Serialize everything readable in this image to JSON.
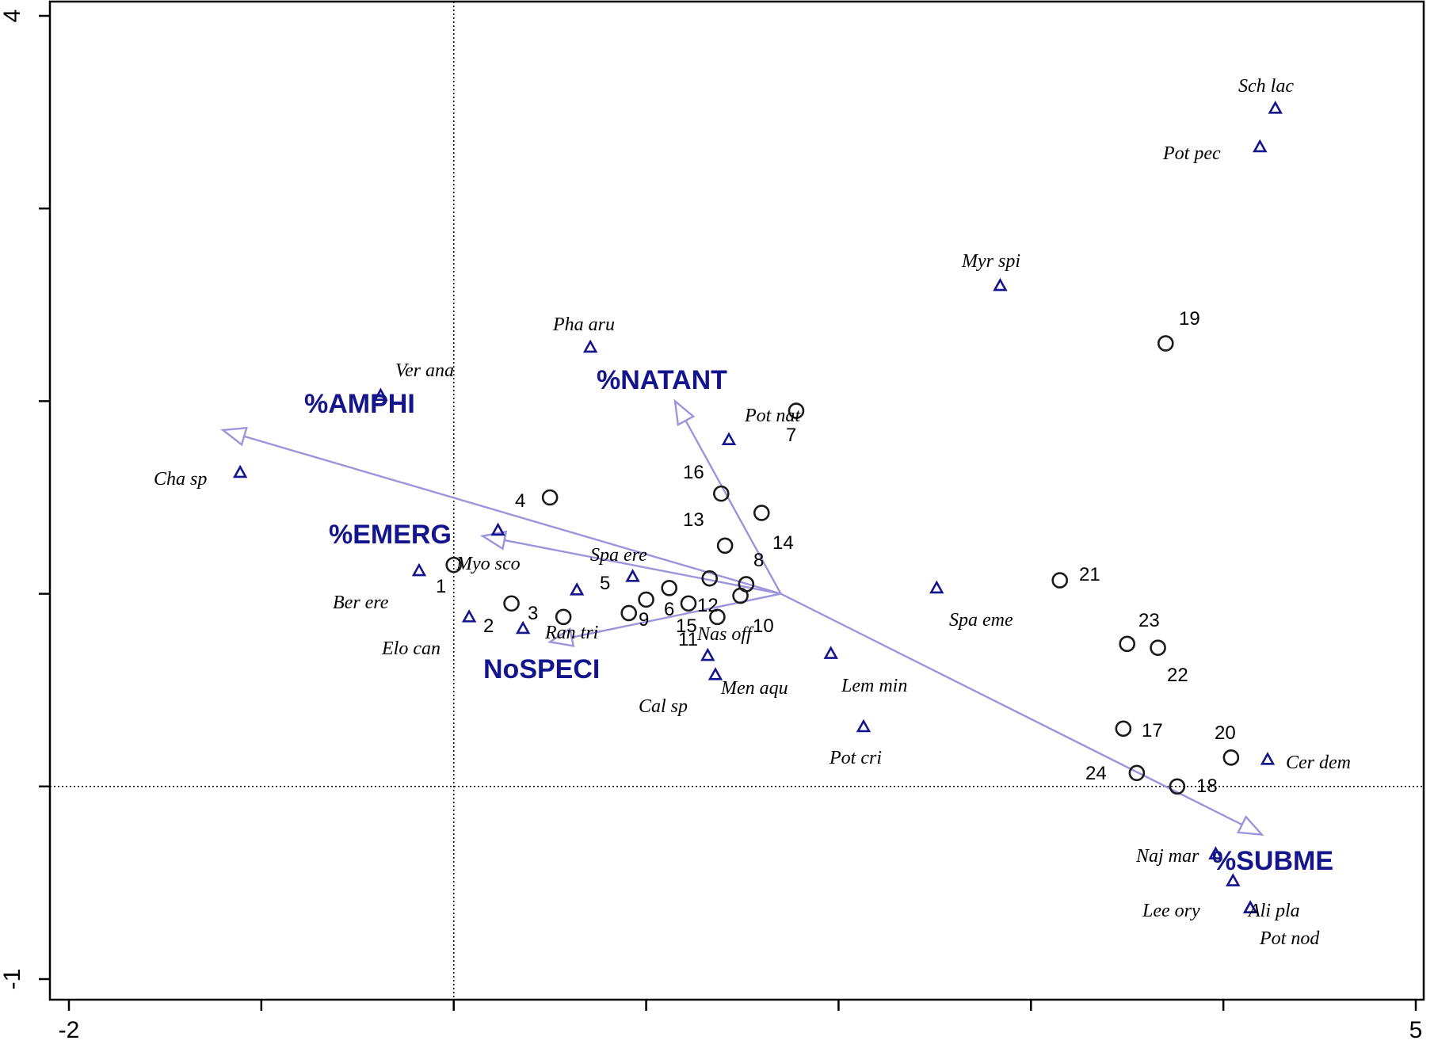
{
  "chart_data": {
    "type": "scatter",
    "title": "",
    "xlabel": "",
    "ylabel": "",
    "xlim": [
      -2,
      5
    ],
    "ylim": [
      -1,
      4
    ],
    "x_ticks": [
      -2,
      -1,
      0,
      1,
      2,
      3,
      4,
      5
    ],
    "y_ticks": [
      -1,
      0,
      1,
      2,
      3,
      4
    ],
    "x_tick_labels": [
      {
        "value": -2,
        "label": "-2"
      },
      {
        "value": 5,
        "label": "5"
      }
    ],
    "y_tick_labels": [
      {
        "value": -1,
        "label": "-1"
      },
      {
        "value": 4,
        "label": "4"
      }
    ],
    "reference_lines": {
      "x": 0,
      "y": 0
    },
    "colors": {
      "env": "#9b95db",
      "species": "#14148c",
      "label": "#14148c"
    },
    "env_vectors": [
      {
        "name": "%AMPHI",
        "x": -1.2,
        "y": 1.85
      },
      {
        "name": "%NATANT",
        "x": 1.15,
        "y": 2.0
      },
      {
        "name": "%EMERG",
        "x": 0.15,
        "y": 1.3
      },
      {
        "name": "NoSPECI",
        "x": 0.5,
        "y": 0.75
      },
      {
        "name": "%SUBME",
        "x": 4.2,
        "y": -0.25
      }
    ],
    "env_origin": {
      "x": 1.7,
      "y": 1.0
    },
    "sites": [
      {
        "label": "1",
        "x": 0.0,
        "y": 1.15
      },
      {
        "label": "2",
        "x": 0.3,
        "y": 0.95
      },
      {
        "label": "3",
        "x": 0.57,
        "y": 0.88
      },
      {
        "label": "4",
        "x": 0.5,
        "y": 1.5
      },
      {
        "label": "5",
        "x": 0.91,
        "y": 0.9
      },
      {
        "label": "6",
        "x": 1.0,
        "y": 0.97
      },
      {
        "label": "7",
        "x": 1.78,
        "y": 1.95
      },
      {
        "label": "8",
        "x": 1.41,
        "y": 1.25
      },
      {
        "label": "9",
        "x": 1.12,
        "y": 1.03
      },
      {
        "label": "10",
        "x": 1.49,
        "y": 0.99
      },
      {
        "label": "11",
        "x": 1.22,
        "y": 0.95
      },
      {
        "label": "12",
        "x": 1.33,
        "y": 1.08
      },
      {
        "label": "13",
        "x": 1.39,
        "y": 1.52
      },
      {
        "label": "14",
        "x": 1.6,
        "y": 1.42
      },
      {
        "label": "15",
        "x": 1.37,
        "y": 0.88
      },
      {
        "label": "16",
        "x": 1.52,
        "y": 1.05
      },
      {
        "label": "17",
        "x": 3.48,
        "y": 0.3
      },
      {
        "label": "18",
        "x": 3.76,
        "y": 0.0
      },
      {
        "label": "19",
        "x": 3.7,
        "y": 2.3
      },
      {
        "label": "20",
        "x": 4.04,
        "y": 0.15
      },
      {
        "label": "21",
        "x": 3.15,
        "y": 1.07
      },
      {
        "label": "22",
        "x": 3.66,
        "y": 0.72
      },
      {
        "label": "23",
        "x": 3.5,
        "y": 0.74
      },
      {
        "label": "24",
        "x": 3.55,
        "y": 0.07
      }
    ],
    "species": [
      {
        "label": "Sch lac",
        "x": 4.27,
        "y": 3.52
      },
      {
        "label": "Pot pec",
        "x": 4.19,
        "y": 3.32
      },
      {
        "label": "Myr spi",
        "x": 2.84,
        "y": 2.6
      },
      {
        "label": "Pha aru",
        "x": 0.71,
        "y": 2.28
      },
      {
        "label": "Ver ana",
        "x": -0.38,
        "y": 2.03
      },
      {
        "label": "Pot nat",
        "x": 1.43,
        "y": 1.8
      },
      {
        "label": "Cha sp",
        "x": -1.11,
        "y": 1.63
      },
      {
        "label": "Myo sco",
        "x": 0.23,
        "y": 1.33
      },
      {
        "label": "Spa ere",
        "x": 0.93,
        "y": 1.09
      },
      {
        "label": "Ber ere",
        "x": -0.18,
        "y": 1.12
      },
      {
        "label": "Ran tri",
        "x": 0.64,
        "y": 1.02
      },
      {
        "label": "Elo can",
        "x": 0.08,
        "y": 0.88
      },
      {
        "label": "Nas off",
        "x": 0.36,
        "y": 0.82
      },
      {
        "label": "Cal sp",
        "x": 1.32,
        "y": 0.68
      },
      {
        "label": "Men aqu",
        "x": 1.36,
        "y": 0.58
      },
      {
        "label": "Spa eme",
        "x": 2.51,
        "y": 1.03
      },
      {
        "label": "Lem min",
        "x": 1.96,
        "y": 0.69
      },
      {
        "label": "Pot cri",
        "x": 2.13,
        "y": 0.31
      },
      {
        "label": "Cer dem",
        "x": 4.23,
        "y": 0.14
      },
      {
        "label": "Naj mar",
        "x": 3.96,
        "y": -0.35
      },
      {
        "label": "Lee ory",
        "x": 4.05,
        "y": -0.49
      },
      {
        "label": "Ali pla",
        "x": 4.14,
        "y": -0.63
      },
      {
        "label": "Pot nod",
        "x": 4.14,
        "y": -0.63
      }
    ]
  }
}
